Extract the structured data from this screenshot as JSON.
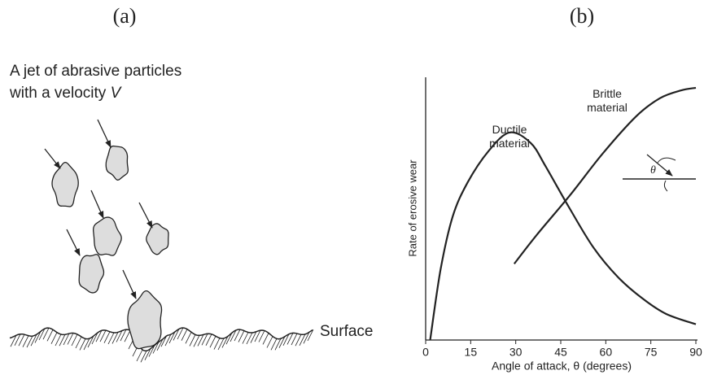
{
  "panel_a": {
    "label": "(a)",
    "caption_line1": "A jet of abrasive particles",
    "caption_line2": "with a velocity",
    "velocity_symbol": "V",
    "surface_label": "Surface"
  },
  "chart_data": {
    "type": "line",
    "panel_label": "(b)",
    "xlabel": "Angle of attack, θ (degrees)",
    "ylabel": "Rate of erosive wear",
    "inset_label": "θ",
    "xlim": [
      0,
      90
    ],
    "xticks": [
      0,
      15,
      30,
      45,
      60,
      75,
      90
    ],
    "ylim": [
      0,
      100
    ],
    "series": [
      {
        "name": "Ductile material",
        "color": "#222222",
        "x": [
          1.5,
          5,
          9,
          14,
          21,
          28,
          35,
          40,
          48,
          56,
          64,
          72,
          80,
          90
        ],
        "values": [
          0,
          27,
          47,
          60,
          72,
          79,
          75,
          66,
          50,
          35,
          24,
          16,
          10,
          6
        ]
      },
      {
        "name": "Brittle material",
        "color": "#222222",
        "x": [
          29.5,
          37,
          48,
          59,
          70,
          78,
          85,
          90
        ],
        "values": [
          29,
          40,
          55,
          71,
          85,
          92,
          95,
          96
        ]
      }
    ]
  }
}
